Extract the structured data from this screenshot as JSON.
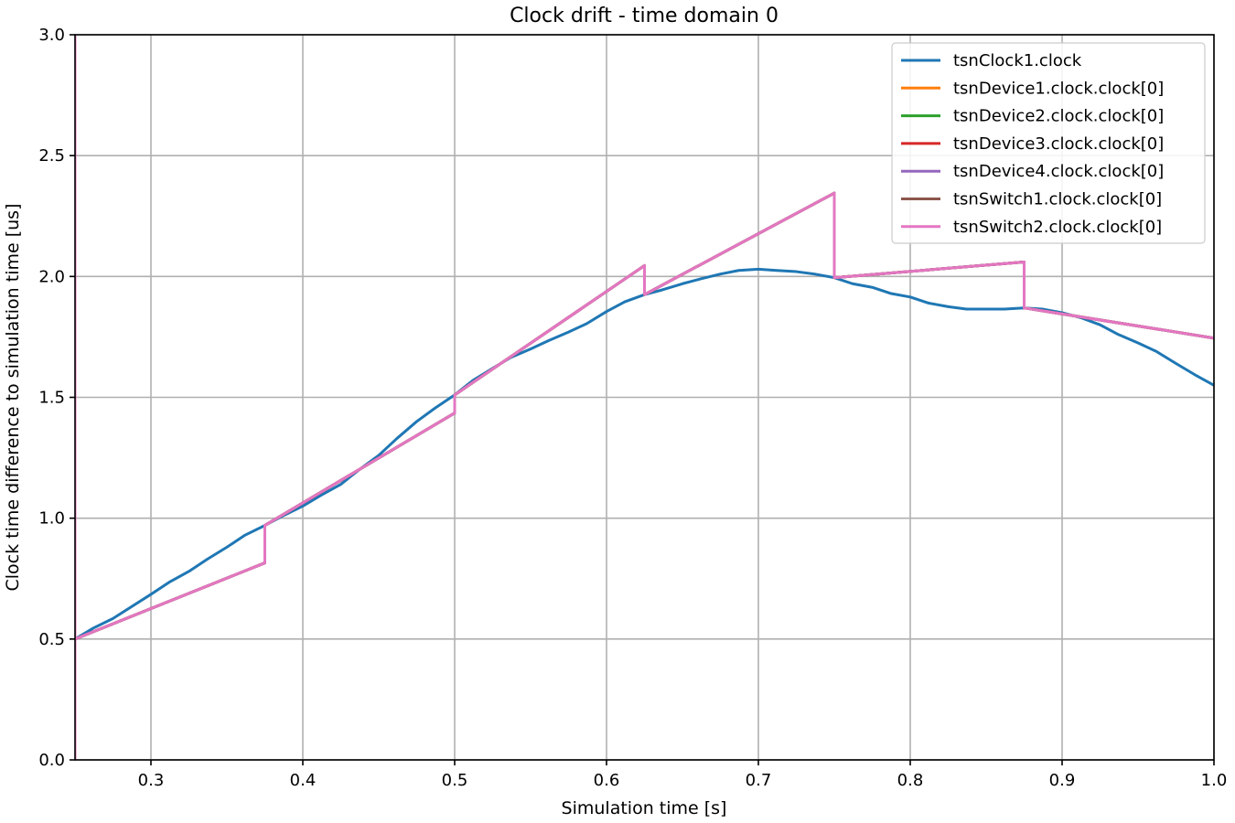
{
  "chart_data": {
    "type": "line",
    "title": "Clock drift - time domain 0",
    "xlabel": "Simulation time [s]",
    "ylabel": "Clock time difference to simulation time [us]",
    "xlim": [
      0.25,
      1.0
    ],
    "ylim": [
      0.0,
      3.0
    ],
    "xticks": [
      0.3,
      0.4,
      0.5,
      0.6,
      0.7,
      0.8,
      0.9,
      1.0
    ],
    "xtick_labels": [
      "0.3",
      "0.4",
      "0.5",
      "0.6",
      "0.7",
      "0.8",
      "0.9",
      "1.0"
    ],
    "yticks": [
      0.0,
      0.5,
      1.0,
      1.5,
      2.0,
      2.5,
      3.0
    ],
    "ytick_labels": [
      "0.0",
      "0.5",
      "1.0",
      "1.5",
      "2.0",
      "2.5",
      "3.0"
    ],
    "grid": true,
    "legend_position": "top-right",
    "series": [
      {
        "name": "tsnClock1.clock",
        "color": "#1f77b4",
        "x": [
          0.25,
          0.262,
          0.275,
          0.3,
          0.312,
          0.325,
          0.337,
          0.35,
          0.362,
          0.375,
          0.387,
          0.4,
          0.412,
          0.425,
          0.437,
          0.45,
          0.462,
          0.475,
          0.487,
          0.5,
          0.512,
          0.525,
          0.537,
          0.55,
          0.562,
          0.575,
          0.587,
          0.6,
          0.612,
          0.625,
          0.637,
          0.65,
          0.662,
          0.675,
          0.687,
          0.7,
          0.712,
          0.725,
          0.737,
          0.75,
          0.762,
          0.775,
          0.787,
          0.8,
          0.812,
          0.825,
          0.837,
          0.85,
          0.862,
          0.875,
          0.887,
          0.9,
          0.912,
          0.925,
          0.937,
          0.95,
          0.962,
          0.975,
          0.987,
          1.0
        ],
        "y": [
          0.5,
          0.545,
          0.585,
          0.685,
          0.735,
          0.78,
          0.83,
          0.88,
          0.93,
          0.97,
          1.01,
          1.05,
          1.095,
          1.14,
          1.2,
          1.26,
          1.33,
          1.4,
          1.455,
          1.51,
          1.57,
          1.62,
          1.665,
          1.7,
          1.735,
          1.77,
          1.805,
          1.855,
          1.895,
          1.925,
          1.945,
          1.97,
          1.99,
          2.01,
          2.025,
          2.03,
          2.025,
          2.02,
          2.01,
          1.995,
          1.97,
          1.955,
          1.93,
          1.915,
          1.89,
          1.875,
          1.865,
          1.865,
          1.865,
          1.87,
          1.865,
          1.85,
          1.83,
          1.8,
          1.76,
          1.725,
          1.69,
          1.64,
          1.595,
          1.55
        ]
      },
      {
        "name": "tsnDevice1.clock.clock[0]",
        "color": "#ff7f0e",
        "x": [
          0.25,
          0.25,
          0.25,
          0.375,
          0.375,
          0.5,
          0.5,
          0.625,
          0.625,
          0.75,
          0.75,
          0.875,
          0.875,
          1.0
        ],
        "y": [
          0.0,
          3.0,
          0.5,
          0.815,
          0.97,
          1.435,
          1.51,
          2.045,
          1.925,
          2.345,
          1.995,
          2.06,
          1.87,
          1.745
        ]
      },
      {
        "name": "tsnDevice2.clock.clock[0]",
        "color": "#2ca02c",
        "x": [
          0.25,
          0.25,
          0.25,
          0.375,
          0.375,
          0.5,
          0.5,
          0.625,
          0.625,
          0.75,
          0.75,
          0.875,
          0.875,
          1.0
        ],
        "y": [
          0.0,
          3.0,
          0.5,
          0.815,
          0.97,
          1.435,
          1.51,
          2.045,
          1.925,
          2.345,
          1.995,
          2.06,
          1.87,
          1.745
        ]
      },
      {
        "name": "tsnDevice3.clock.clock[0]",
        "color": "#d62728",
        "x": [
          0.25,
          0.25,
          0.25,
          0.375,
          0.375,
          0.5,
          0.5,
          0.625,
          0.625,
          0.75,
          0.75,
          0.875,
          0.875,
          1.0
        ],
        "y": [
          0.0,
          3.0,
          0.5,
          0.815,
          0.97,
          1.435,
          1.51,
          2.045,
          1.925,
          2.345,
          1.995,
          2.06,
          1.87,
          1.745
        ]
      },
      {
        "name": "tsnDevice4.clock.clock[0]",
        "color": "#9467bd",
        "x": [
          0.25,
          0.25,
          0.25,
          0.375,
          0.375,
          0.5,
          0.5,
          0.625,
          0.625,
          0.75,
          0.75,
          0.875,
          0.875,
          1.0
        ],
        "y": [
          0.0,
          3.0,
          0.5,
          0.815,
          0.97,
          1.435,
          1.51,
          2.045,
          1.925,
          2.345,
          1.995,
          2.06,
          1.87,
          1.745
        ]
      },
      {
        "name": "tsnSwitch1.clock.clock[0]",
        "color": "#8c564b",
        "x": [
          0.25,
          0.25,
          0.25,
          0.375,
          0.375,
          0.5,
          0.5,
          0.625,
          0.625,
          0.75,
          0.75,
          0.875,
          0.875,
          1.0
        ],
        "y": [
          0.0,
          3.0,
          0.5,
          0.815,
          0.97,
          1.435,
          1.51,
          2.045,
          1.925,
          2.345,
          1.995,
          2.06,
          1.87,
          1.745
        ]
      },
      {
        "name": "tsnSwitch2.clock.clock[0]",
        "color": "#e377c2",
        "x": [
          0.25,
          0.25,
          0.25,
          0.375,
          0.375,
          0.5,
          0.5,
          0.625,
          0.625,
          0.75,
          0.75,
          0.875,
          0.875,
          1.0
        ],
        "y": [
          0.0,
          3.0,
          0.5,
          0.815,
          0.97,
          1.435,
          1.51,
          2.045,
          1.925,
          2.345,
          1.995,
          2.06,
          1.87,
          1.745
        ]
      }
    ]
  }
}
